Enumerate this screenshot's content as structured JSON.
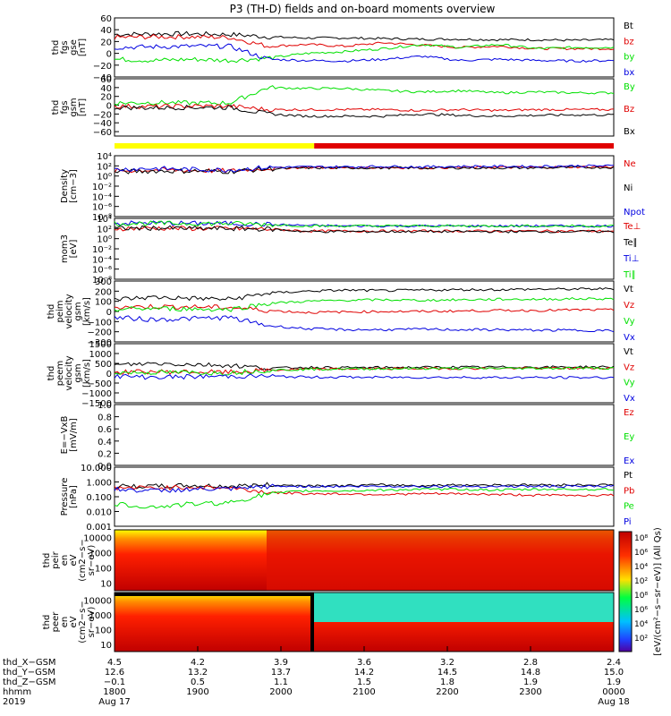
{
  "title": "P3 (TH-D) fields and on-board moments overview",
  "colors": {
    "black": "#000000",
    "red": "#e00000",
    "green": "#00e000",
    "blue": "#0000e0",
    "yellow": "#ffff00"
  },
  "chart_data": {
    "type": "line",
    "time_range": [
      "1800",
      "0000"
    ],
    "panels": [
      {
        "id": "fgs-gse",
        "ylabel": [
          "thd",
          "fgs",
          "gse",
          "[nT]"
        ],
        "scale": "linear",
        "ylim": [
          -40,
          60
        ],
        "ticks": [
          "60",
          "40",
          "20",
          "0",
          "−20",
          "−40"
        ],
        "tick_values": [
          60,
          40,
          20,
          0,
          -20,
          -40
        ],
        "series": [
          {
            "name": "Bt",
            "color": "black",
            "values": [
              32,
              33,
              33,
              32,
              28,
              26,
              26,
              25,
              24,
              24,
              23,
              23,
              22,
              23
            ]
          },
          {
            "name": "bz",
            "color": "red",
            "values": [
              27,
              28,
              28,
              27,
              12,
              15,
              12,
              18,
              14,
              10,
              12,
              8,
              8,
              8
            ]
          },
          {
            "name": "by",
            "color": "green",
            "values": [
              -10,
              -12,
              -10,
              -12,
              -8,
              0,
              3,
              8,
              15,
              10,
              15,
              8,
              10,
              10
            ]
          },
          {
            "name": "bx",
            "color": "blue",
            "values": [
              10,
              11,
              12,
              12,
              -10,
              -12,
              -13,
              -10,
              -5,
              -12,
              -10,
              -12,
              -13,
              -12
            ]
          }
        ]
      },
      {
        "id": "fgs-gsm",
        "ylabel": [
          "thd",
          "fgs",
          "gsm",
          "[nT]"
        ],
        "scale": "linear",
        "ylim": [
          -70,
          60
        ],
        "ticks": [
          "60",
          "40",
          "20",
          "0",
          "−20",
          "−40",
          "−60"
        ],
        "tick_values": [
          60,
          40,
          20,
          0,
          -20,
          -40,
          -60
        ],
        "series": [
          {
            "name": "By",
            "color": "green",
            "values": [
              5,
              6,
              5,
              5,
              40,
              38,
              38,
              33,
              30,
              33,
              28,
              30,
              28,
              28
            ]
          },
          {
            "name": "Bz",
            "color": "red",
            "values": [
              -2,
              -3,
              -2,
              -2,
              -10,
              -10,
              -10,
              -10,
              -12,
              -10,
              -12,
              -10,
              -10,
              -10
            ]
          },
          {
            "name": "Bx",
            "color": "black",
            "values": [
              -5,
              -6,
              -5,
              -5,
              -20,
              -25,
              -25,
              -25,
              -20,
              -23,
              -25,
              -23,
              -22,
              -22
            ]
          }
        ]
      },
      {
        "id": "density",
        "ylabel": [
          "Density",
          "[cm−3]"
        ],
        "scale": "log",
        "ylim": [
          -8,
          4
        ],
        "ticks": [
          "10⁴",
          "10²",
          "10⁰",
          "10⁻²",
          "10⁻⁴",
          "10⁻⁶",
          "10⁻⁸"
        ],
        "tick_values": [
          4,
          2,
          0,
          -2,
          -4,
          -6,
          -8
        ],
        "series": [
          {
            "name": "Ne",
            "color": "red",
            "values": [
              1,
              1.2,
              1.1,
              1,
              1.5,
              1.7,
              1.6,
              1.7,
              1.6,
              1.7,
              1.7,
              1.7,
              1.8,
              1.8
            ]
          },
          {
            "name": "Ni",
            "color": "black",
            "values": [
              0.8,
              1,
              1,
              0.9,
              1.4,
              1.6,
              1.6,
              1.6,
              1.6,
              1.6,
              1.6,
              1.6,
              1.7,
              1.7
            ]
          },
          {
            "name": "Npot",
            "color": "blue",
            "values": [
              1.3,
              1.5,
              1.3,
              1.2,
              1.7,
              1.8,
              1.8,
              1.9,
              1.8,
              1.9,
              1.9,
              1.9,
              2,
              2
            ]
          }
        ]
      },
      {
        "id": "moms",
        "ylabel": [
          "mom3",
          "[eV]"
        ],
        "scale": "log",
        "ylim": [
          -8,
          4
        ],
        "ticks": [
          "10⁴",
          "10²",
          "10⁰",
          "10⁻²",
          "10⁻⁴",
          "10⁻⁶",
          "10⁻⁸"
        ],
        "tick_values": [
          4,
          2,
          0,
          -2,
          -4,
          -6,
          -8
        ],
        "series": [
          {
            "name": "Te⊥",
            "color": "red",
            "values": [
              2,
              2.1,
              2,
              2,
              1.9,
              1.5,
              1.5,
              1.5,
              1.5,
              1.5,
              1.5,
              1.5,
              1.5,
              1.5
            ]
          },
          {
            "name": "Te∥",
            "color": "black",
            "values": [
              2,
              2.1,
              2,
              2,
              1.9,
              1.4,
              1.4,
              1.4,
              1.4,
              1.4,
              1.4,
              1.4,
              1.4,
              1.4
            ]
          },
          {
            "name": "Ti⊥",
            "color": "blue",
            "values": [
              3,
              3.1,
              3,
              3,
              2.8,
              2.6,
              2.5,
              2.5,
              2.5,
              2.5,
              2.5,
              2.5,
              2.5,
              2.5
            ]
          },
          {
            "name": "Ti∥",
            "color": "green",
            "values": [
              3,
              3,
              3,
              3,
              2.8,
              2.5,
              2.5,
              2.5,
              2.5,
              2.5,
              2.5,
              2.5,
              2.5,
              2.5
            ]
          }
        ]
      },
      {
        "id": "peim",
        "ylabel": [
          "thd",
          "peim",
          "velocity",
          "gsm",
          "[km/s]"
        ],
        "scale": "linear",
        "ylim": [
          -300,
          300
        ],
        "ticks": [
          "300",
          "200",
          "100",
          "0",
          "−100",
          "−200",
          "−300"
        ],
        "tick_values": [
          300,
          200,
          100,
          0,
          -100,
          -200,
          -300
        ],
        "series": [
          {
            "name": "Vt",
            "color": "black",
            "values": [
              120,
              140,
              130,
              120,
              180,
              200,
              210,
              205,
              210,
              215,
              215,
              220,
              220,
              225
            ]
          },
          {
            "name": "Vz",
            "color": "red",
            "values": [
              40,
              50,
              45,
              40,
              10,
              -10,
              -5,
              0,
              0,
              5,
              10,
              10,
              15,
              15
            ]
          },
          {
            "name": "Vy",
            "color": "green",
            "values": [
              20,
              30,
              25,
              20,
              80,
              100,
              110,
              115,
              110,
              115,
              120,
              120,
              125,
              125
            ]
          },
          {
            "name": "Vx",
            "color": "blue",
            "values": [
              -60,
              -80,
              -70,
              -60,
              -140,
              -170,
              -180,
              -180,
              -175,
              -180,
              -180,
              -185,
              -185,
              -190
            ]
          }
        ]
      },
      {
        "id": "peem",
        "ylabel": [
          "thd",
          "peem",
          "velocity",
          "gsm",
          "[km/s]"
        ],
        "scale": "linear",
        "ylim": [
          -1500,
          1500
        ],
        "ticks": [
          "1500",
          "1000",
          "500",
          "0",
          "−500",
          "−1000",
          "−1500"
        ],
        "tick_values": [
          1500,
          1000,
          500,
          0,
          -500,
          -1000,
          -1500
        ],
        "series": [
          {
            "name": "Vt",
            "color": "black",
            "values": [
              400,
              500,
              450,
              400,
              250,
              300,
              280,
              290,
              300,
              310,
              310,
              310,
              320,
              320
            ]
          },
          {
            "name": "Vz",
            "color": "red",
            "values": [
              50,
              80,
              60,
              50,
              150,
              200,
              220,
              230,
              240,
              240,
              250,
              250,
              250,
              260
            ]
          },
          {
            "name": "Vy",
            "color": "green",
            "values": [
              30,
              40,
              30,
              20,
              150,
              200,
              220,
              230,
              240,
              240,
              250,
              250,
              260,
              260
            ]
          },
          {
            "name": "Vx",
            "color": "blue",
            "values": [
              -150,
              -200,
              -180,
              -150,
              -150,
              -200,
              -200,
              -210,
              -210,
              -210,
              -220,
              -220,
              -220,
              -220
            ]
          }
        ]
      },
      {
        "id": "efield",
        "ylabel": [
          "E=−VxB",
          "[mV/m]"
        ],
        "scale": "linear",
        "ylim": [
          0,
          1
        ],
        "ticks": [
          "1.0",
          "0.8",
          "0.6",
          "0.4",
          "0.2",
          "0.0"
        ],
        "tick_values": [
          1,
          0.8,
          0.6,
          0.4,
          0.2,
          0
        ],
        "series": [
          {
            "name": "Ez",
            "color": "red",
            "values": []
          },
          {
            "name": "Ey",
            "color": "green",
            "values": []
          },
          {
            "name": "Ex",
            "color": "blue",
            "values": []
          }
        ]
      },
      {
        "id": "pressure",
        "ylabel": [
          "Pressure",
          "[nPa]"
        ],
        "scale": "log",
        "ylim": [
          -3,
          1
        ],
        "ticks": [
          "10.000",
          "1.000",
          "0.100",
          "0.010",
          "0.001"
        ],
        "tick_values": [
          1,
          0,
          -1,
          -2,
          -3
        ],
        "series": [
          {
            "name": "Pt",
            "color": "black",
            "values": [
              -0.3,
              -0.3,
              -0.25,
              -0.3,
              -0.2,
              -0.25,
              -0.25,
              -0.2,
              -0.25,
              -0.2,
              -0.2,
              -0.2,
              -0.2,
              -0.2
            ]
          },
          {
            "name": "Pb",
            "color": "red",
            "values": [
              -0.4,
              -0.4,
              -0.35,
              -0.4,
              -0.7,
              -0.8,
              -0.8,
              -0.85,
              -0.8,
              -0.8,
              -0.85,
              -0.9,
              -0.9,
              -0.9
            ]
          },
          {
            "name": "Pe",
            "color": "green",
            "values": [
              -1.5,
              -1.7,
              -1.5,
              -1.4,
              -0.8,
              -0.6,
              -0.6,
              -0.55,
              -0.5,
              -0.5,
              -0.55,
              -0.5,
              -0.5,
              -0.5
            ]
          },
          {
            "name": "Pi",
            "color": "blue",
            "values": [
              -0.5,
              -0.6,
              -0.5,
              -0.5,
              -0.3,
              -0.3,
              -0.3,
              -0.3,
              -0.3,
              -0.3,
              -0.3,
              -0.3,
              -0.3,
              -0.3
            ]
          }
        ]
      },
      {
        "id": "peir",
        "type": "heatmap",
        "ylabel": [
          "thd",
          "peir",
          "en",
          "eV",
          "(cm2−s−",
          "sr−eV)"
        ],
        "ticks": [
          "10000",
          "1000",
          "100",
          "10"
        ],
        "tick_values": [
          4,
          3,
          2,
          1
        ]
      },
      {
        "id": "peer",
        "type": "heatmap",
        "ylabel": [
          "thd",
          "peer",
          "en",
          "eV",
          "(cm2−s−",
          "sr−eV)"
        ],
        "ticks": [
          "10000",
          "1000",
          "100",
          "10"
        ],
        "tick_values": [
          4,
          3,
          2,
          1
        ]
      }
    ],
    "colorbar": {
      "label": "[eV/(cm²−s−sr−eV)] (All Qs)",
      "ticks": [
        "10⁸",
        "10⁶",
        "10⁴",
        "10²",
        "10⁸",
        "10⁶",
        "10⁴",
        "10²"
      ]
    },
    "mode_bar": {
      "yellow_until_fraction": 0.4,
      "color_after": "red"
    },
    "x_axis": {
      "rows": [
        {
          "label": "thd_X−GSM",
          "values": [
            "4.5",
            "4.2",
            "3.9",
            "3.6",
            "3.2",
            "2.8",
            "2.4"
          ]
        },
        {
          "label": "thd_Y−GSM",
          "values": [
            "12.6",
            "13.2",
            "13.7",
            "14.2",
            "14.5",
            "14.8",
            "15.0"
          ]
        },
        {
          "label": "thd_Z−GSM",
          "values": [
            "−0.1",
            "0.5",
            "1.1",
            "1.5",
            "1.8",
            "1.9",
            "1.9"
          ]
        },
        {
          "label": "hhmm",
          "values": [
            "1800",
            "1900",
            "2000",
            "2100",
            "2200",
            "2300",
            "0000"
          ]
        },
        {
          "label": "2019",
          "values": [
            "Aug 17",
            "",
            "",
            "",
            "",
            "",
            "Aug 18"
          ]
        }
      ]
    }
  }
}
